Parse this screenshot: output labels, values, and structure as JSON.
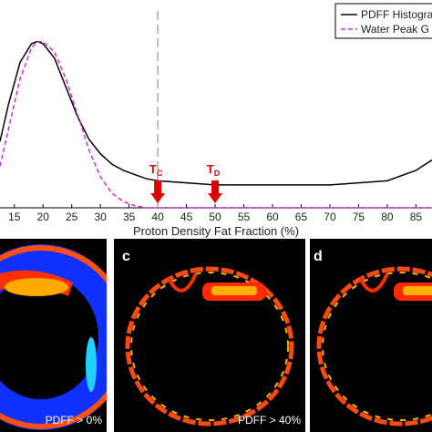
{
  "chart_data": {
    "type": "line",
    "xlabel": "Proton Density Fat Fraction (%)",
    "x": [
      12.5,
      14,
      16,
      18,
      19,
      20,
      22,
      24,
      26,
      28,
      30,
      32,
      34,
      36,
      38,
      40,
      45,
      50,
      55,
      60,
      65,
      70,
      75,
      80,
      85,
      87.8
    ],
    "series": [
      {
        "name": "PDFF Histogra",
        "color": "#000000",
        "dash": false,
        "values": [
          0.32,
          0.5,
          0.7,
          0.79,
          0.8,
          0.79,
          0.72,
          0.58,
          0.44,
          0.33,
          0.26,
          0.21,
          0.18,
          0.16,
          0.14,
          0.13,
          0.12,
          0.11,
          0.11,
          0.11,
          0.11,
          0.11,
          0.12,
          0.13,
          0.18,
          0.23
        ]
      },
      {
        "name": "Water Peak G",
        "color": "#cc33cc",
        "dash": true,
        "values": [
          0.2,
          0.38,
          0.62,
          0.77,
          0.8,
          0.8,
          0.75,
          0.62,
          0.45,
          0.28,
          0.15,
          0.07,
          0.03,
          0.01,
          0,
          0,
          0,
          0,
          0,
          0,
          0,
          0,
          0,
          0,
          0,
          0
        ]
      }
    ],
    "xlim": [
      12.5,
      87.8
    ],
    "ylim": [
      0,
      1
    ],
    "xticks": [
      15,
      20,
      25,
      30,
      35,
      40,
      45,
      50,
      55,
      60,
      65,
      70,
      75,
      80,
      85
    ],
    "vline": 40,
    "annotations": [
      {
        "text": "T",
        "sub": "C",
        "x": 40,
        "color": "#dd0000"
      },
      {
        "text": "T",
        "sub": "D",
        "x": 50,
        "color": "#dd0000"
      }
    ],
    "legend": "upper right"
  },
  "panels": [
    {
      "caption": "PDFF > 0%"
    },
    {
      "label": "c",
      "caption": "PDFF > 40%"
    },
    {
      "label": "d"
    }
  ]
}
